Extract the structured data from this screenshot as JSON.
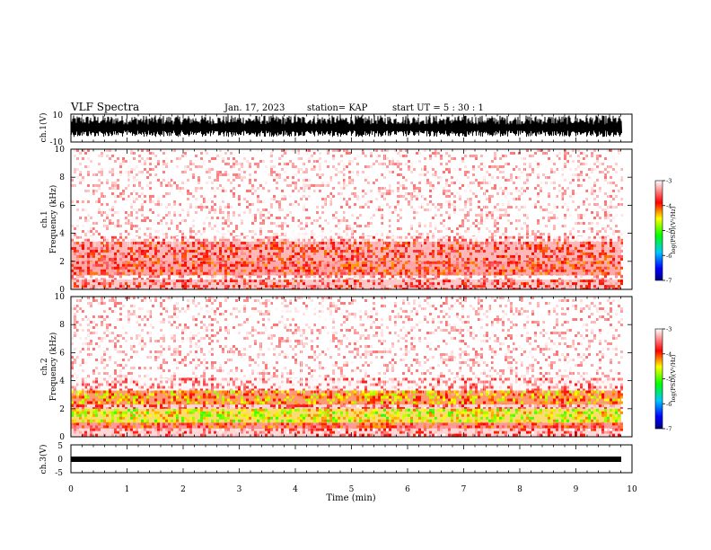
{
  "header": {
    "title": "VLF Spectra",
    "date": "Jan. 17, 2023",
    "station": "station= KAP",
    "start": "start  UT =  5 : 30 : 1"
  },
  "chart_data": [
    {
      "type": "line",
      "title": "",
      "ylabel": "ch.1(V)",
      "ylim": [
        -10,
        10
      ],
      "y_ticks": [
        "10",
        "-10"
      ],
      "xlim": [
        0,
        10
      ],
      "note": "dense broadband waveform"
    },
    {
      "type": "heatmap",
      "ylabel": "ch.1 Frequency (kHz)",
      "ylim": [
        0,
        10
      ],
      "y_ticks": [
        "0",
        "2",
        "4",
        "6",
        "8",
        "10"
      ],
      "xlim": [
        0,
        10
      ],
      "bands": [
        {
          "from": 0,
          "to": 0.7,
          "level": -3.6
        },
        {
          "from": 0.7,
          "to": 1.0,
          "level": -3.2
        },
        {
          "from": 1.0,
          "to": 2.0,
          "level": -3.8
        },
        {
          "from": 2.0,
          "to": 3.4,
          "level": -3.7
        },
        {
          "from": 3.4,
          "to": 3.8,
          "level": -3.3
        },
        {
          "from": 3.8,
          "to": 10,
          "level": -3.0
        }
      ],
      "colorbar": {
        "label": "log(PSD)(V²/Hz)",
        "ticks": [
          "-3",
          "-4",
          "-5",
          "-6",
          "-7"
        ],
        "range": [
          -7,
          -3
        ]
      }
    },
    {
      "type": "heatmap",
      "ylabel": "ch.2 Frequency (kHz)",
      "ylim": [
        0,
        10
      ],
      "y_ticks": [
        "0",
        "2",
        "4",
        "6",
        "8",
        "10"
      ],
      "xlim": [
        0,
        10
      ],
      "bands": [
        {
          "from": 0,
          "to": 0.6,
          "level": -3.5
        },
        {
          "from": 0.6,
          "to": 1.0,
          "level": -3.9
        },
        {
          "from": 1.0,
          "to": 2.0,
          "level": -4.6
        },
        {
          "from": 2.0,
          "to": 2.3,
          "level": -3.5
        },
        {
          "from": 2.3,
          "to": 3.3,
          "level": -4.3
        },
        {
          "from": 3.3,
          "to": 4.2,
          "level": -3.3
        },
        {
          "from": 4.2,
          "to": 10,
          "level": -3.0
        }
      ],
      "colorbar": {
        "label": "log(PSD)(V²/Hz)",
        "ticks": [
          "-3",
          "-4",
          "-5",
          "-6",
          "-7"
        ],
        "range": [
          -7,
          -3
        ]
      }
    },
    {
      "type": "line",
      "ylabel": "ch.3(V)",
      "ylim": [
        -5,
        5
      ],
      "y_ticks": [
        "5",
        "0",
        "-5"
      ],
      "xlim": [
        0,
        10
      ],
      "x_ticks": [
        "0",
        "1",
        "2",
        "3",
        "4",
        "5",
        "6",
        "7",
        "8",
        "9",
        "10"
      ],
      "xlabel": "Time (min)",
      "note": "near-constant narrow trace around -1 V"
    }
  ]
}
